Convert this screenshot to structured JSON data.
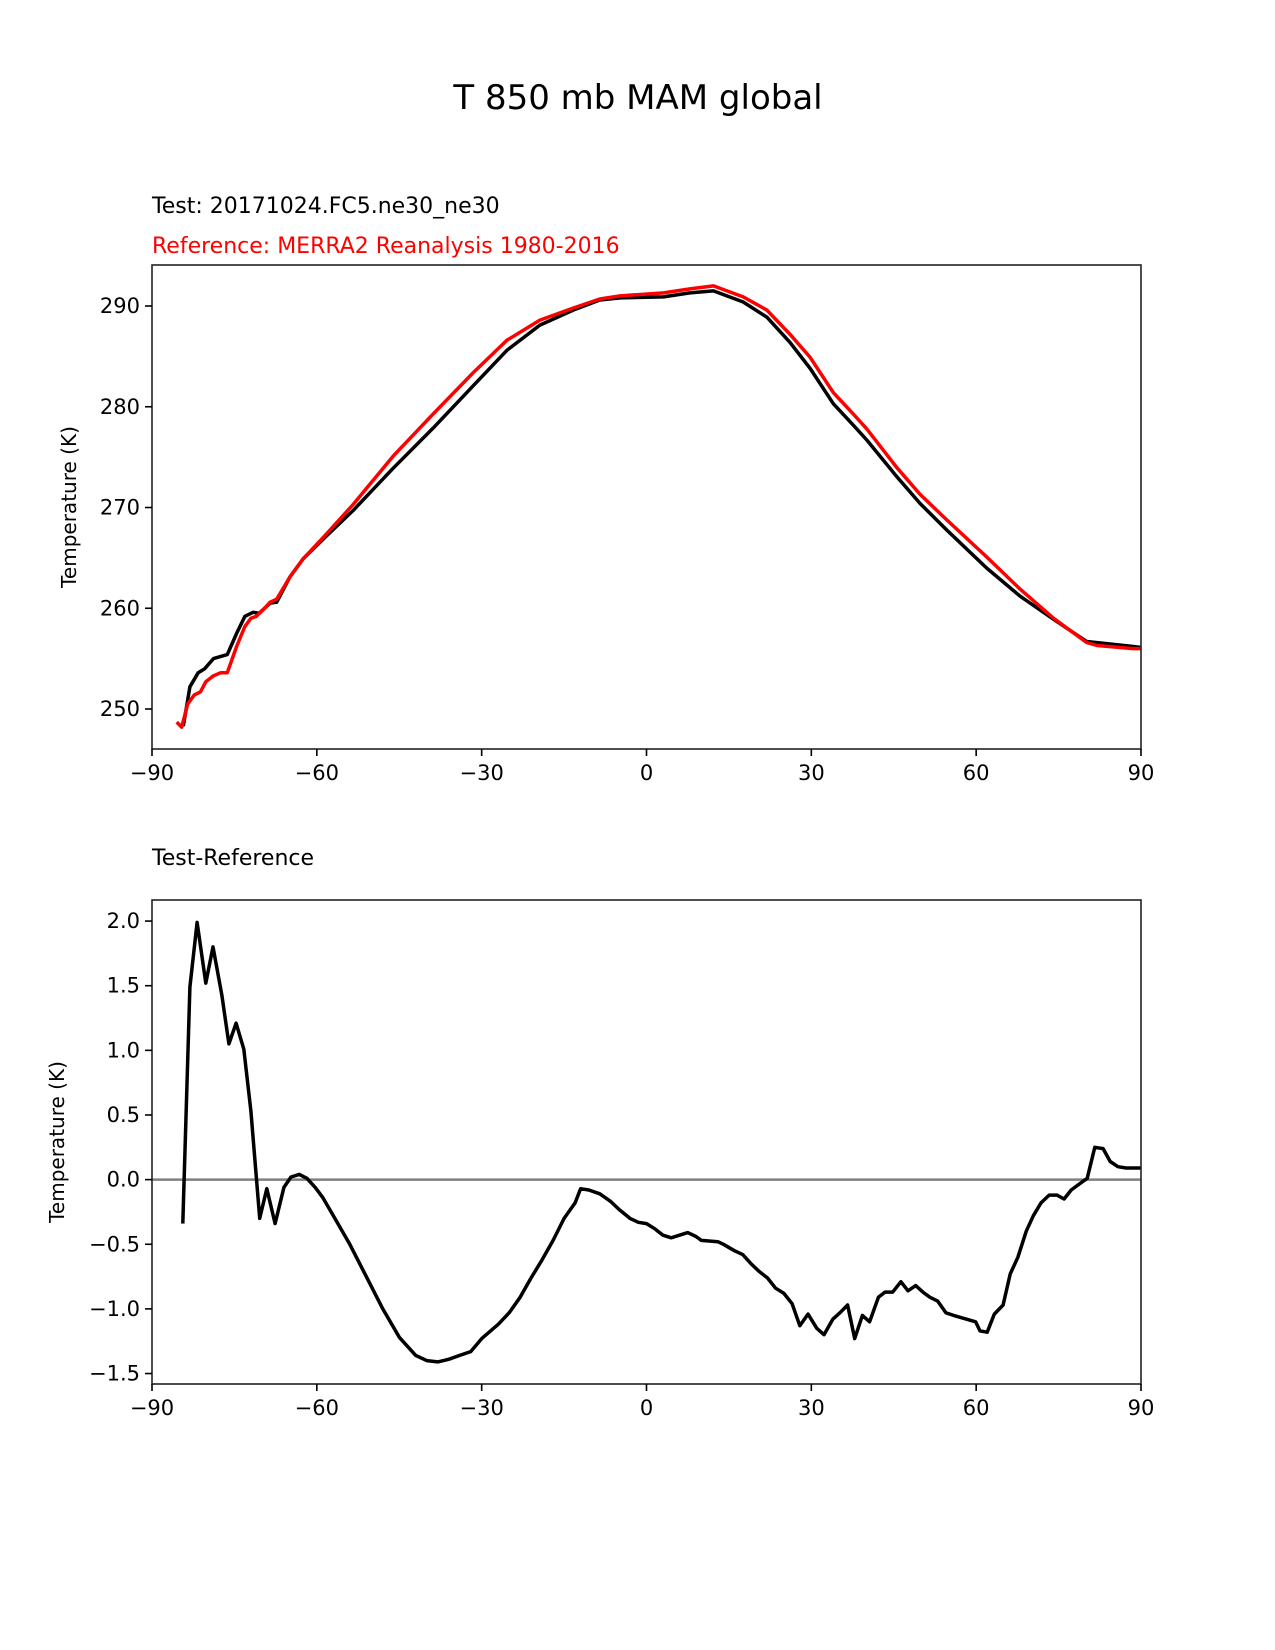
{
  "title": "T 850 mb MAM global",
  "colors": {
    "test": "#000000",
    "reference": "#ff0000",
    "zero_line": "#808080"
  },
  "chart_data": [
    {
      "type": "line",
      "test_label": "Test: 20171024.FC5.ne30_ne30",
      "reference_label": "Reference: MERRA2 Reanalysis 1980-2016",
      "xlabel": "",
      "ylabel": "Temperature (K)",
      "xlim": [
        -90,
        90
      ],
      "ylim": [
        246.03,
        294.07
      ],
      "xticks": [
        -90,
        -60,
        -30,
        0,
        30,
        60,
        90
      ],
      "xtick_labels": [
        "−90",
        "−60",
        "−30",
        "0",
        "30",
        "60",
        "90"
      ],
      "yticks": [
        250,
        260,
        270,
        280,
        290
      ],
      "ytick_labels": [
        "250",
        "260",
        "270",
        "280",
        "290"
      ],
      "grid": false,
      "series": [
        {
          "name": "Test",
          "color": "#000000",
          "points": [
            [
              -84.3,
              248.3
            ],
            [
              -83.1,
              252.2
            ],
            [
              -81.6,
              253.6
            ],
            [
              -80.4,
              254.0
            ],
            [
              -78.8,
              255.0
            ],
            [
              -76.3,
              255.4
            ],
            [
              -74.6,
              257.5
            ],
            [
              -73.1,
              259.2
            ],
            [
              -71.6,
              259.6
            ],
            [
              -70.5,
              259.5
            ],
            [
              -68.5,
              260.5
            ],
            [
              -67.3,
              260.6
            ],
            [
              -64.9,
              263.1
            ],
            [
              -62.5,
              264.9
            ],
            [
              -58.2,
              267.2
            ],
            [
              -53.4,
              269.7
            ],
            [
              -46.1,
              273.9
            ],
            [
              -38.8,
              277.9
            ],
            [
              -31.5,
              282.1
            ],
            [
              -25.4,
              285.6
            ],
            [
              -19.4,
              288.1
            ],
            [
              -13.3,
              289.6
            ],
            [
              -8.5,
              290.6
            ],
            [
              -4.8,
              290.8
            ],
            [
              3.1,
              290.9
            ],
            [
              7.9,
              291.3
            ],
            [
              12.2,
              291.5
            ],
            [
              17.6,
              290.4
            ],
            [
              21.9,
              288.9
            ],
            [
              26.1,
              286.4
            ],
            [
              29.8,
              283.8
            ],
            [
              34.0,
              280.3
            ],
            [
              37.6,
              278.2
            ],
            [
              40.1,
              276.7
            ],
            [
              45.5,
              273.1
            ],
            [
              49.8,
              270.4
            ],
            [
              54.6,
              267.8
            ],
            [
              61.9,
              264.0
            ],
            [
              68.0,
              261.2
            ],
            [
              74.1,
              258.9
            ],
            [
              80.1,
              256.7
            ],
            [
              88.6,
              256.2
            ],
            [
              90,
              256.1
            ]
          ]
        },
        {
          "name": "Reference",
          "color": "#ff0000",
          "points": [
            [
              -85.5,
              248.7
            ],
            [
              -84.6,
              248.2
            ],
            [
              -83.5,
              250.5
            ],
            [
              -82.3,
              251.4
            ],
            [
              -81.2,
              251.7
            ],
            [
              -80.2,
              252.7
            ],
            [
              -78.8,
              253.3
            ],
            [
              -77.5,
              253.6
            ],
            [
              -76.3,
              253.6
            ],
            [
              -74.6,
              256.2
            ],
            [
              -73.1,
              258.2
            ],
            [
              -72.0,
              259.0
            ],
            [
              -71.0,
              259.2
            ],
            [
              -69.5,
              260.0
            ],
            [
              -68.5,
              260.6
            ],
            [
              -67.3,
              260.9
            ],
            [
              -64.9,
              263.1
            ],
            [
              -62.5,
              264.9
            ],
            [
              -58.2,
              267.4
            ],
            [
              -53.4,
              270.3
            ],
            [
              -46.1,
              275.1
            ],
            [
              -38.8,
              279.3
            ],
            [
              -31.5,
              283.4
            ],
            [
              -25.4,
              286.6
            ],
            [
              -19.4,
              288.6
            ],
            [
              -13.3,
              289.8
            ],
            [
              -8.5,
              290.7
            ],
            [
              -4.8,
              291.0
            ],
            [
              3.1,
              291.3
            ],
            [
              7.9,
              291.7
            ],
            [
              12.2,
              292.0
            ],
            [
              17.6,
              290.9
            ],
            [
              21.9,
              289.6
            ],
            [
              26.1,
              287.2
            ],
            [
              29.8,
              284.9
            ],
            [
              34.0,
              281.4
            ],
            [
              37.6,
              279.3
            ],
            [
              40.1,
              277.8
            ],
            [
              45.5,
              274.0
            ],
            [
              49.8,
              271.3
            ],
            [
              54.6,
              268.8
            ],
            [
              61.9,
              265.1
            ],
            [
              68.0,
              261.9
            ],
            [
              74.1,
              259.0
            ],
            [
              80.1,
              256.6
            ],
            [
              82.0,
              256.3
            ],
            [
              88.6,
              256.0
            ],
            [
              90,
              256.0
            ]
          ]
        }
      ]
    },
    {
      "type": "line",
      "title": "Test-Reference",
      "xlabel": "",
      "ylabel": "Temperature (K)",
      "xlim": [
        -90,
        90
      ],
      "ylim": [
        -1.581,
        2.163
      ],
      "xticks": [
        -90,
        -60,
        -30,
        0,
        30,
        60,
        90
      ],
      "xtick_labels": [
        "−90",
        "−60",
        "−30",
        "0",
        "30",
        "60",
        "90"
      ],
      "yticks": [
        -1.5,
        -1.0,
        -0.5,
        0.0,
        0.5,
        1.0,
        1.5,
        2.0
      ],
      "ytick_labels": [
        "−1.5",
        "−1.0",
        "−0.5",
        "0.0",
        "0.5",
        "1.0",
        "1.5",
        "2.0"
      ],
      "reference_line": 0,
      "grid": false,
      "series": [
        {
          "name": "Test-Reference",
          "color": "#000000",
          "points": [
            [
              -84.4,
              -0.34
            ],
            [
              -83.1,
              1.49
            ],
            [
              -81.8,
              1.99
            ],
            [
              -80.2,
              1.52
            ],
            [
              -78.9,
              1.8
            ],
            [
              -77.3,
              1.43
            ],
            [
              -76.0,
              1.05
            ],
            [
              -74.7,
              1.21
            ],
            [
              -73.3,
              1.01
            ],
            [
              -72.0,
              0.53
            ],
            [
              -70.4,
              -0.3
            ],
            [
              -69.1,
              -0.07
            ],
            [
              -67.6,
              -0.34
            ],
            [
              -66.0,
              -0.06
            ],
            [
              -64.7,
              0.02
            ],
            [
              -63.2,
              0.04
            ],
            [
              -61.8,
              0.01
            ],
            [
              -60.3,
              -0.06
            ],
            [
              -58.9,
              -0.14
            ],
            [
              -57.4,
              -0.25
            ],
            [
              -54,
              -0.5
            ],
            [
              -51,
              -0.75
            ],
            [
              -48,
              -1.0
            ],
            [
              -45,
              -1.22
            ],
            [
              -42,
              -1.36
            ],
            [
              -40,
              -1.4
            ],
            [
              -38,
              -1.41
            ],
            [
              -36,
              -1.39
            ],
            [
              -34,
              -1.36
            ],
            [
              -32,
              -1.33
            ],
            [
              -30,
              -1.23
            ],
            [
              -27,
              -1.12
            ],
            [
              -25,
              -1.03
            ],
            [
              -23,
              -0.91
            ],
            [
              -21,
              -0.76
            ],
            [
              -19,
              -0.62
            ],
            [
              -17,
              -0.47
            ],
            [
              -15,
              -0.3
            ],
            [
              -13,
              -0.18
            ],
            [
              -12,
              -0.07
            ],
            [
              -10.5,
              -0.08
            ],
            [
              -8.5,
              -0.11
            ],
            [
              -6.5,
              -0.17
            ],
            [
              -5,
              -0.23
            ],
            [
              -3,
              -0.3
            ],
            [
              -1.5,
              -0.33
            ],
            [
              0,
              -0.34
            ],
            [
              1.5,
              -0.38
            ],
            [
              3,
              -0.43
            ],
            [
              4.5,
              -0.45
            ],
            [
              6,
              -0.43
            ],
            [
              7.5,
              -0.41
            ],
            [
              9,
              -0.44
            ],
            [
              10,
              -0.47
            ],
            [
              13,
              -0.48
            ],
            [
              14,
              -0.5
            ],
            [
              16,
              -0.55
            ],
            [
              17.5,
              -0.58
            ],
            [
              19,
              -0.65
            ],
            [
              20.5,
              -0.71
            ],
            [
              22,
              -0.76
            ],
            [
              23.5,
              -0.84
            ],
            [
              25,
              -0.88
            ],
            [
              26.5,
              -0.96
            ],
            [
              27.9,
              -1.13
            ],
            [
              29.4,
              -1.04
            ],
            [
              31.0,
              -1.15
            ],
            [
              32.3,
              -1.2
            ],
            [
              33.9,
              -1.08
            ],
            [
              35.2,
              -1.03
            ],
            [
              36.6,
              -0.97
            ],
            [
              37.9,
              -1.23
            ],
            [
              39.3,
              -1.05
            ],
            [
              40.6,
              -1.1
            ],
            [
              42.2,
              -0.91
            ],
            [
              43.4,
              -0.87
            ],
            [
              44.8,
              -0.87
            ],
            [
              46.3,
              -0.79
            ],
            [
              47.6,
              -0.86
            ],
            [
              49.0,
              -0.82
            ],
            [
              50.3,
              -0.87
            ],
            [
              51.6,
              -0.91
            ],
            [
              53.0,
              -0.94
            ],
            [
              54.5,
              -1.03
            ],
            [
              55.9,
              -1.05
            ],
            [
              59.9,
              -1.1
            ],
            [
              60.7,
              -1.17
            ],
            [
              62.0,
              -1.18
            ],
            [
              63.3,
              -1.04
            ],
            [
              64.9,
              -0.97
            ],
            [
              66.2,
              -0.73
            ],
            [
              67.6,
              -0.6
            ],
            [
              69.1,
              -0.4
            ],
            [
              70.4,
              -0.28
            ],
            [
              71.8,
              -0.18
            ],
            [
              73.3,
              -0.12
            ],
            [
              74.7,
              -0.12
            ],
            [
              76.0,
              -0.15
            ],
            [
              77.3,
              -0.08
            ],
            [
              78.9,
              -0.03
            ],
            [
              80.2,
              0.01
            ],
            [
              81.6,
              0.25
            ],
            [
              83.1,
              0.24
            ],
            [
              84.4,
              0.14
            ],
            [
              85.8,
              0.1
            ],
            [
              87.3,
              0.09
            ],
            [
              90,
              0.09
            ]
          ]
        }
      ]
    }
  ]
}
